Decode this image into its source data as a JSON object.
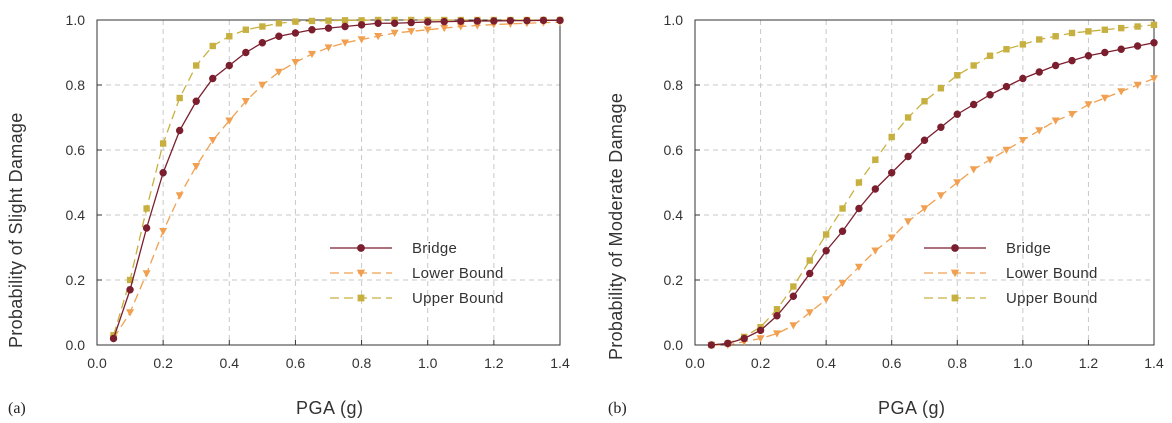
{
  "panels": [
    {
      "label": "(a)",
      "ylabel": "Probability of Slight Damage",
      "xlabel": "PGA (g)"
    },
    {
      "label": "(b)",
      "ylabel": "Probability of Moderate Damage",
      "xlabel": "PGA (g)"
    }
  ],
  "chart_data": [
    {
      "type": "line",
      "panel": "(a)",
      "xlabel": "PGA (g)",
      "ylabel": "Probability of Slight Damage",
      "xlim": [
        0.0,
        1.4
      ],
      "ylim": [
        0.0,
        1.0
      ],
      "xticks": [
        "0.0",
        "0.2",
        "0.4",
        "0.6",
        "0.8",
        "1.0",
        "1.2",
        "1.4"
      ],
      "yticks": [
        "0.0",
        "0.2",
        "0.4",
        "0.6",
        "0.8",
        "1.0"
      ],
      "grid": true,
      "legend_position": "lower-right",
      "x": [
        0.05,
        0.1,
        0.15,
        0.2,
        0.25,
        0.3,
        0.35,
        0.4,
        0.45,
        0.5,
        0.55,
        0.6,
        0.65,
        0.7,
        0.75,
        0.8,
        0.85,
        0.9,
        0.95,
        1.0,
        1.05,
        1.1,
        1.15,
        1.2,
        1.25,
        1.3,
        1.35,
        1.4
      ],
      "series": [
        {
          "name": "Bridge",
          "color": "#7b1e2e",
          "marker": "circle",
          "dash": "solid",
          "values": [
            0.02,
            0.17,
            0.36,
            0.53,
            0.66,
            0.75,
            0.82,
            0.86,
            0.9,
            0.93,
            0.95,
            0.96,
            0.97,
            0.975,
            0.98,
            0.985,
            0.99,
            0.99,
            0.992,
            0.994,
            0.995,
            0.996,
            0.997,
            0.997,
            0.998,
            0.998,
            0.999,
            0.999
          ]
        },
        {
          "name": "Lower Bound",
          "color": "#f0a050",
          "marker": "triangle-down",
          "dash": "dashed",
          "values": [
            0.02,
            0.1,
            0.22,
            0.35,
            0.46,
            0.55,
            0.63,
            0.69,
            0.75,
            0.8,
            0.84,
            0.87,
            0.895,
            0.915,
            0.93,
            0.94,
            0.95,
            0.96,
            0.965,
            0.97,
            0.975,
            0.98,
            0.983,
            0.986,
            0.988,
            0.99,
            0.992,
            0.993
          ]
        },
        {
          "name": "Upper Bound",
          "color": "#c8b040",
          "marker": "square",
          "dash": "dashed",
          "values": [
            0.03,
            0.2,
            0.42,
            0.62,
            0.76,
            0.86,
            0.92,
            0.95,
            0.97,
            0.98,
            0.99,
            0.995,
            0.997,
            0.998,
            0.999,
            0.999,
            1.0,
            1.0,
            1.0,
            1.0,
            1.0,
            1.0,
            1.0,
            1.0,
            1.0,
            1.0,
            1.0,
            1.0
          ]
        }
      ]
    },
    {
      "type": "line",
      "panel": "(b)",
      "xlabel": "PGA (g)",
      "ylabel": "Probability of Moderate Damage",
      "xlim": [
        0.0,
        1.4
      ],
      "ylim": [
        0.0,
        1.0
      ],
      "xticks": [
        "0.0",
        "0.2",
        "0.4",
        "0.6",
        "0.8",
        "1.0",
        "1.2",
        "1.4"
      ],
      "yticks": [
        "0.0",
        "0.2",
        "0.4",
        "0.6",
        "0.8",
        "1.0"
      ],
      "grid": true,
      "legend_position": "lower-right",
      "x": [
        0.05,
        0.1,
        0.15,
        0.2,
        0.25,
        0.3,
        0.35,
        0.4,
        0.45,
        0.5,
        0.55,
        0.6,
        0.65,
        0.7,
        0.75,
        0.8,
        0.85,
        0.9,
        0.95,
        1.0,
        1.05,
        1.1,
        1.15,
        1.2,
        1.25,
        1.3,
        1.35,
        1.4
      ],
      "series": [
        {
          "name": "Bridge",
          "color": "#7b1e2e",
          "marker": "circle",
          "dash": "solid",
          "values": [
            0.0,
            0.005,
            0.02,
            0.045,
            0.09,
            0.15,
            0.22,
            0.29,
            0.35,
            0.42,
            0.48,
            0.53,
            0.58,
            0.63,
            0.67,
            0.71,
            0.74,
            0.77,
            0.795,
            0.82,
            0.84,
            0.86,
            0.875,
            0.89,
            0.9,
            0.91,
            0.92,
            0.93
          ]
        },
        {
          "name": "Lower Bound",
          "color": "#f0a050",
          "marker": "triangle-down",
          "dash": "dashed",
          "values": [
            0.0,
            0.0,
            0.01,
            0.02,
            0.035,
            0.06,
            0.1,
            0.14,
            0.19,
            0.24,
            0.29,
            0.33,
            0.38,
            0.42,
            0.46,
            0.5,
            0.54,
            0.57,
            0.6,
            0.63,
            0.66,
            0.69,
            0.71,
            0.74,
            0.76,
            0.78,
            0.8,
            0.82
          ]
        },
        {
          "name": "Upper Bound",
          "color": "#c8b040",
          "marker": "square",
          "dash": "dashed",
          "values": [
            0.0,
            0.005,
            0.025,
            0.055,
            0.11,
            0.18,
            0.26,
            0.34,
            0.42,
            0.5,
            0.57,
            0.64,
            0.7,
            0.75,
            0.79,
            0.83,
            0.86,
            0.89,
            0.91,
            0.925,
            0.94,
            0.95,
            0.96,
            0.965,
            0.97,
            0.975,
            0.98,
            0.985
          ]
        }
      ]
    }
  ]
}
